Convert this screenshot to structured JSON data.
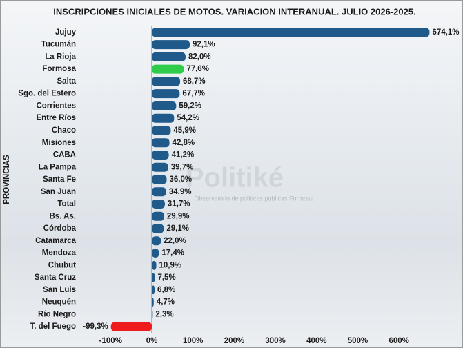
{
  "chart_data": {
    "type": "bar",
    "orientation": "horizontal",
    "title": "INSCRIPCIONES INICIALES DE MOTOS. VARIACION INTERANUAL. JULIO 2026-2025.",
    "ylabel": "PROVINCIAS",
    "watermark": "Politiké",
    "watermark_subtitle": "Observatorio de políticas públicas Formosa",
    "categories": [
      "Jujuy",
      "Tucumán",
      "La Rioja",
      "Formosa",
      "Salta",
      "Sgo. del Estero",
      "Corrientes",
      "Entre Ríos",
      "Chaco",
      "Misiones",
      "CABA",
      "La Pampa",
      "Santa Fe",
      "San Juan",
      "Total",
      "Bs. As.",
      "Córdoba",
      "Catamarca",
      "Mendoza",
      "Chubut",
      "Santa Cruz",
      "San Luis",
      "Neuquén",
      "Río Negro",
      "T. del Fuego"
    ],
    "values": [
      674.1,
      92.1,
      82.0,
      77.6,
      68.7,
      67.7,
      59.2,
      54.2,
      45.9,
      42.8,
      41.2,
      39.7,
      36.0,
      34.9,
      31.7,
      29.9,
      29.1,
      22.0,
      17.4,
      10.9,
      7.5,
      6.8,
      4.7,
      2.3,
      -99.3
    ],
    "value_labels": [
      "674,1%",
      "92,1%",
      "82,0%",
      "77,6%",
      "68,7%",
      "67,7%",
      "59,2%",
      "54,2%",
      "45,9%",
      "42,8%",
      "41,2%",
      "39,7%",
      "36,0%",
      "34,9%",
      "31,7%",
      "29,9%",
      "29,1%",
      "22,0%",
      "17,4%",
      "10,9%",
      "7,5%",
      "6,8%",
      "4,7%",
      "2,3%",
      "-99,3%"
    ],
    "colors": [
      "#1f5a8a",
      "#1f5a8a",
      "#1f5a8a",
      "#2ecc4a",
      "#1f5a8a",
      "#1f5a8a",
      "#1f5a8a",
      "#1f5a8a",
      "#1f5a8a",
      "#1f5a8a",
      "#1f5a8a",
      "#1f5a8a",
      "#1f5a8a",
      "#1f5a8a",
      "#1f5a8a",
      "#1f5a8a",
      "#1f5a8a",
      "#1f5a8a",
      "#1f5a8a",
      "#1f5a8a",
      "#1f5a8a",
      "#1f5a8a",
      "#1f5a8a",
      "#1f5a8a",
      "#ee1c1c"
    ],
    "xlim": [
      -100,
      700
    ],
    "xticks": [
      {
        "value": -100,
        "label": "-100%"
      },
      {
        "value": 0,
        "label": "0%"
      },
      {
        "value": 100,
        "label": "100%"
      },
      {
        "value": 200,
        "label": "200%"
      },
      {
        "value": 300,
        "label": "300%"
      },
      {
        "value": 400,
        "label": "400%"
      },
      {
        "value": 500,
        "label": "500%"
      },
      {
        "value": 600,
        "label": "600%"
      }
    ],
    "grid": false
  }
}
